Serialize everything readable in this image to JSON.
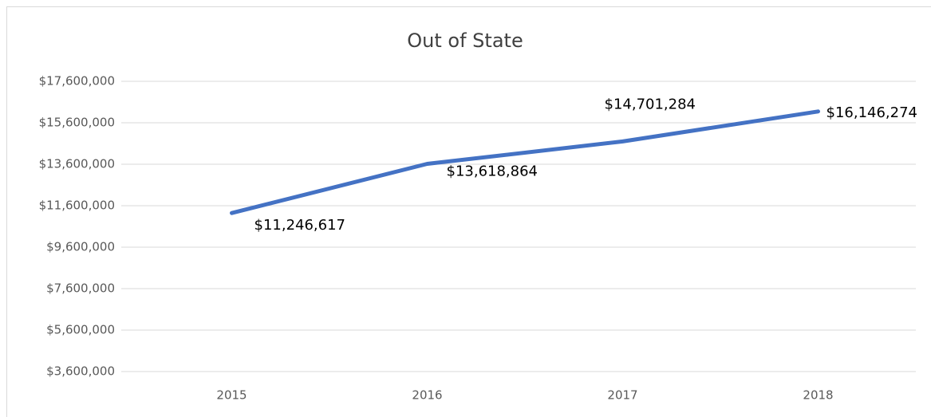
{
  "chart_data": {
    "type": "line",
    "title": "Out of State",
    "categories": [
      "2015",
      "2016",
      "2017",
      "2018"
    ],
    "series": [
      {
        "name": "Out of State",
        "color": "#4472c4",
        "values": [
          11246617,
          13618864,
          14701284,
          16146274
        ],
        "value_labels": [
          "$11,246,617",
          "$13,618,864",
          "$14,701,284",
          "$16,146,274"
        ]
      }
    ],
    "ylim": [
      3600000,
      17600000
    ],
    "yticks": [
      {
        "value": 3600000,
        "label": "$3,600,000"
      },
      {
        "value": 5600000,
        "label": "$5,600,000"
      },
      {
        "value": 7600000,
        "label": "$7,600,000"
      },
      {
        "value": 9600000,
        "label": "$9,600,000"
      },
      {
        "value": 11600000,
        "label": "$11,600,000"
      },
      {
        "value": 13600000,
        "label": "$13,600,000"
      },
      {
        "value": 15600000,
        "label": "$15,600,000"
      },
      {
        "value": 17600000,
        "label": "$17,600,000"
      }
    ],
    "grid": true
  }
}
